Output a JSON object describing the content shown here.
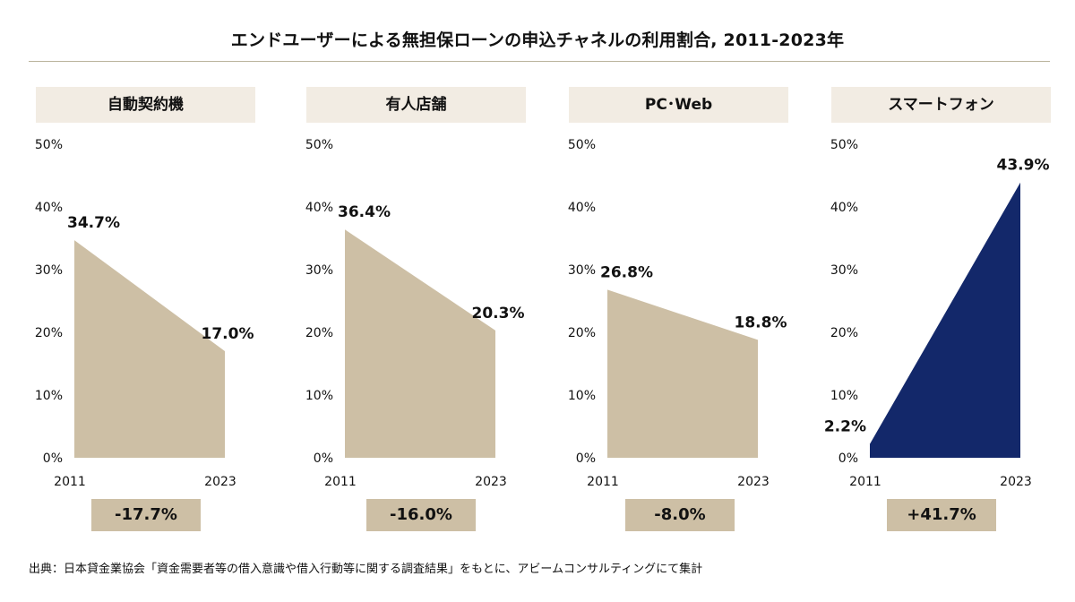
{
  "title": "エンドユーザーによる無担保ローンの申込チャネルの利用割合, 2011-2023年",
  "source": "出典：日本貸金業協会「資金需要者等の借入意識や借入行動等に関する調査結果」をもとに、アビームコンサルティングにて集計",
  "colors": {
    "decline": "#cdbfa5",
    "growth": "#13286a",
    "header_bg": "#f2ece3",
    "change_bg": "#cdbfa5"
  },
  "chart_data": [
    {
      "type": "area",
      "title": "自動契約機",
      "x": [
        "2011",
        "2023"
      ],
      "values": [
        34.7,
        17.0
      ],
      "value_labels": [
        "34.7%",
        "17.0%"
      ],
      "yticks": [
        "0%",
        "10%",
        "20%",
        "30%",
        "40%",
        "50%"
      ],
      "ylim": [
        0,
        50
      ],
      "change": "-17.7%"
    },
    {
      "type": "area",
      "title": "有人店舗",
      "x": [
        "2011",
        "2023"
      ],
      "values": [
        36.4,
        20.3
      ],
      "value_labels": [
        "36.4%",
        "20.3%"
      ],
      "yticks": [
        "0%",
        "10%",
        "20%",
        "30%",
        "40%",
        "50%"
      ],
      "ylim": [
        0,
        50
      ],
      "change": "-16.0%"
    },
    {
      "type": "area",
      "title": "PC･Web",
      "x": [
        "2011",
        "2023"
      ],
      "values": [
        26.8,
        18.8
      ],
      "value_labels": [
        "26.8%",
        "18.8%"
      ],
      "yticks": [
        "0%",
        "10%",
        "20%",
        "30%",
        "40%",
        "50%"
      ],
      "ylim": [
        0,
        50
      ],
      "change": "-8.0%"
    },
    {
      "type": "area",
      "title": "スマートフォン",
      "x": [
        "2011",
        "2023"
      ],
      "values": [
        2.2,
        43.9
      ],
      "value_labels": [
        "2.2%",
        "43.9%"
      ],
      "yticks": [
        "0%",
        "10%",
        "20%",
        "30%",
        "40%",
        "50%"
      ],
      "ylim": [
        0,
        50
      ],
      "change": "+41.7%"
    }
  ]
}
